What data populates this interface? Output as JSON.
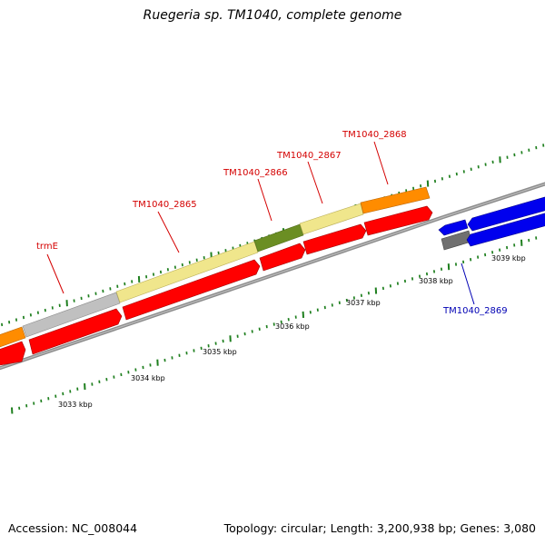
{
  "title": "Ruegeria sp. TM1040, complete genome",
  "accession": "Accession: NC_008044",
  "summary": "Topology: circular; Length: 3,200,938 bp; Genes: 3,080",
  "colors": {
    "backbone": "#8c8c8c",
    "tick": "#1e7f1e",
    "label_red": "#d40000",
    "label_blue": "#0000b4",
    "gene_red": "#ff0000",
    "gene_blue": "#0000ee",
    "orange": "#ff8c00",
    "grey": "#bdbdbd",
    "yellow": "#f0e68c",
    "olive": "#6b8e23",
    "dark_grey": "#707070"
  },
  "scale_labels": [
    "3033 kbp",
    "3034 kbp",
    "3035 kbp",
    "3036 kbp",
    "3037 kbp",
    "3038 kbp",
    "3039 kbp"
  ],
  "gene_labels": [
    {
      "text": "trmE",
      "color": "red"
    },
    {
      "text": "TM1040_2865",
      "color": "red"
    },
    {
      "text": "TM1040_2866",
      "color": "red"
    },
    {
      "text": "TM1040_2867",
      "color": "red"
    },
    {
      "text": "TM1040_2868",
      "color": "red"
    },
    {
      "text": "TM1040_2869",
      "color": "blue"
    }
  ]
}
